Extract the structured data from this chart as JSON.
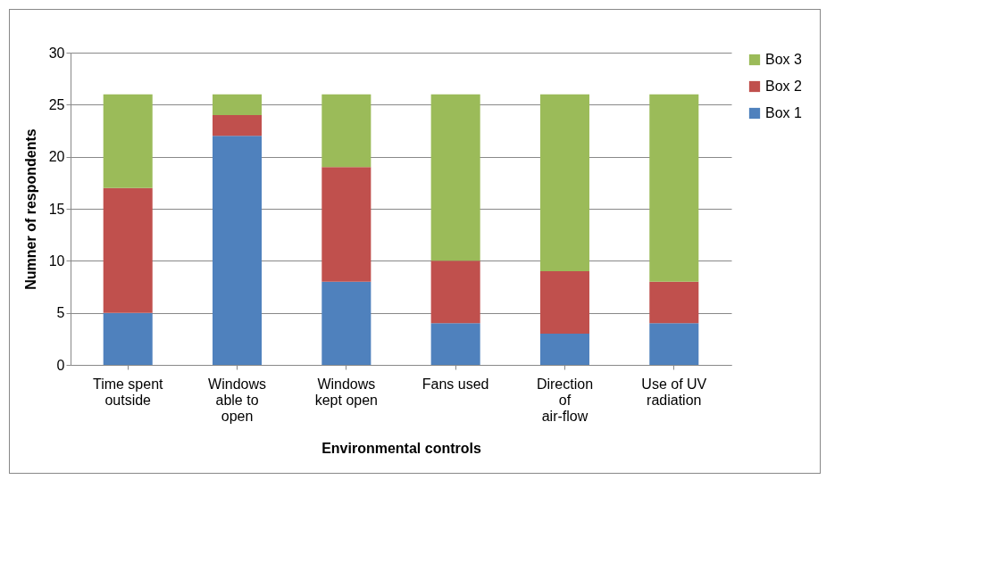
{
  "chart_data": {
    "type": "bar",
    "stacked": true,
    "xlabel": "Environmental controls",
    "ylabel": "Numner of respondents",
    "categories": [
      "Time spent outside",
      "Windows able to open",
      "Windows kept open",
      "Fans used",
      "Direction of air-flow",
      "Use of UV radiation"
    ],
    "series": [
      {
        "name": "Box 1",
        "color": "#4f81bd",
        "values": [
          5,
          22,
          8,
          4,
          3,
          4
        ]
      },
      {
        "name": "Box 2",
        "color": "#c0504d",
        "values": [
          12,
          2,
          11,
          6,
          6,
          4
        ]
      },
      {
        "name": "Box 3",
        "color": "#9bbb59",
        "values": [
          9,
          2,
          7,
          16,
          17,
          18
        ]
      }
    ],
    "ylim": [
      0,
      30
    ],
    "yticks": [
      0,
      5,
      10,
      15,
      20,
      25,
      30
    ],
    "grid": "y",
    "legend": "right"
  }
}
